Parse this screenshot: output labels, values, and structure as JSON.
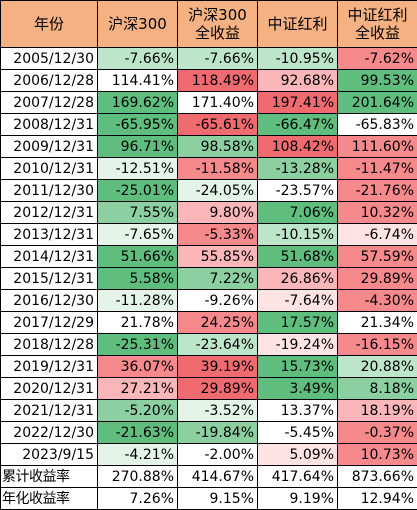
{
  "headers": [
    [
      "年份"
    ],
    [
      "沪深300"
    ],
    [
      "沪深300",
      "全收益"
    ],
    [
      "中证红利"
    ],
    [
      "中证红利",
      "全收益"
    ]
  ],
  "colors": {
    "header": "#f4b183",
    "scale": {
      "g3": "#5fbe7d",
      "g2": "#8cd0a1",
      "g1": "#bde5c9",
      "g0": "#e4f4e9",
      "w": "#ffffff",
      "r0": "#fde3e4",
      "r1": "#fab6b8",
      "r2": "#f5898c",
      "r3": "#f06b6f"
    }
  },
  "rows": [
    {
      "date": "2005/12/30",
      "cells": [
        {
          "v": "-7.66%",
          "c": "g1"
        },
        {
          "v": "-7.66%",
          "c": "g1"
        },
        {
          "v": "-10.95%",
          "c": "g1"
        },
        {
          "v": "-7.62%",
          "c": "r2"
        }
      ]
    },
    {
      "date": "2006/12/28",
      "cells": [
        {
          "v": "114.41%",
          "c": "w"
        },
        {
          "v": "118.49%",
          "c": "r3"
        },
        {
          "v": "92.68%",
          "c": "r1"
        },
        {
          "v": "99.53%",
          "c": "g3"
        }
      ]
    },
    {
      "date": "2007/12/28",
      "cells": [
        {
          "v": "169.62%",
          "c": "g3"
        },
        {
          "v": "171.40%",
          "c": "w"
        },
        {
          "v": "197.41%",
          "c": "r3"
        },
        {
          "v": "201.64%",
          "c": "g3"
        }
      ]
    },
    {
      "date": "2008/12/31",
      "cells": [
        {
          "v": "-65.95%",
          "c": "g3"
        },
        {
          "v": "-65.61%",
          "c": "r3"
        },
        {
          "v": "-66.47%",
          "c": "g3"
        },
        {
          "v": "-65.83%",
          "c": "w"
        }
      ]
    },
    {
      "date": "2009/12/31",
      "cells": [
        {
          "v": "96.71%",
          "c": "g3"
        },
        {
          "v": "98.58%",
          "c": "g2"
        },
        {
          "v": "108.42%",
          "c": "r3"
        },
        {
          "v": "111.60%",
          "c": "r2"
        }
      ]
    },
    {
      "date": "2010/12/31",
      "cells": [
        {
          "v": "-12.51%",
          "c": "g0"
        },
        {
          "v": "-11.58%",
          "c": "r2"
        },
        {
          "v": "-13.28%",
          "c": "g2"
        },
        {
          "v": "-11.47%",
          "c": "r2"
        }
      ]
    },
    {
      "date": "2011/12/30",
      "cells": [
        {
          "v": "-25.01%",
          "c": "g3"
        },
        {
          "v": "-24.05%",
          "c": "g0"
        },
        {
          "v": "-23.57%",
          "c": "w"
        },
        {
          "v": "-21.76%",
          "c": "r2"
        }
      ]
    },
    {
      "date": "2012/12/31",
      "cells": [
        {
          "v": "7.55%",
          "c": "g2"
        },
        {
          "v": "9.80%",
          "c": "r1"
        },
        {
          "v": "7.06%",
          "c": "g3"
        },
        {
          "v": "10.32%",
          "c": "r2"
        }
      ]
    },
    {
      "date": "2013/12/31",
      "cells": [
        {
          "v": "-7.65%",
          "c": "g0"
        },
        {
          "v": "-5.33%",
          "c": "r2"
        },
        {
          "v": "-10.15%",
          "c": "g1"
        },
        {
          "v": "-6.74%",
          "c": "r0"
        }
      ]
    },
    {
      "date": "2014/12/31",
      "cells": [
        {
          "v": "51.66%",
          "c": "g3"
        },
        {
          "v": "55.85%",
          "c": "r1"
        },
        {
          "v": "51.68%",
          "c": "g3"
        },
        {
          "v": "57.59%",
          "c": "r2"
        }
      ]
    },
    {
      "date": "2015/12/31",
      "cells": [
        {
          "v": "5.58%",
          "c": "g3"
        },
        {
          "v": "7.22%",
          "c": "g2"
        },
        {
          "v": "26.86%",
          "c": "r1"
        },
        {
          "v": "29.89%",
          "c": "r2"
        }
      ]
    },
    {
      "date": "2016/12/30",
      "cells": [
        {
          "v": "-11.28%",
          "c": "g0"
        },
        {
          "v": "-9.26%",
          "c": "w"
        },
        {
          "v": "-7.64%",
          "c": "r0"
        },
        {
          "v": "-4.30%",
          "c": "r2"
        }
      ]
    },
    {
      "date": "2017/12/29",
      "cells": [
        {
          "v": "21.78%",
          "c": "w"
        },
        {
          "v": "24.25%",
          "c": "r2"
        },
        {
          "v": "17.57%",
          "c": "g3"
        },
        {
          "v": "21.34%",
          "c": "w"
        }
      ]
    },
    {
      "date": "2018/12/28",
      "cells": [
        {
          "v": "-25.31%",
          "c": "g3"
        },
        {
          "v": "-23.64%",
          "c": "g1"
        },
        {
          "v": "-19.24%",
          "c": "r0"
        },
        {
          "v": "-16.15%",
          "c": "r2"
        }
      ]
    },
    {
      "date": "2019/12/31",
      "cells": [
        {
          "v": "36.07%",
          "c": "r2"
        },
        {
          "v": "39.19%",
          "c": "r3"
        },
        {
          "v": "15.73%",
          "c": "g3"
        },
        {
          "v": "20.88%",
          "c": "g1"
        }
      ]
    },
    {
      "date": "2020/12/31",
      "cells": [
        {
          "v": "27.21%",
          "c": "r1"
        },
        {
          "v": "29.89%",
          "c": "r3"
        },
        {
          "v": "3.49%",
          "c": "g3"
        },
        {
          "v": "8.18%",
          "c": "g2"
        }
      ]
    },
    {
      "date": "2021/12/31",
      "cells": [
        {
          "v": "-5.20%",
          "c": "g2"
        },
        {
          "v": "-3.52%",
          "c": "g0"
        },
        {
          "v": "13.37%",
          "c": "w"
        },
        {
          "v": "18.19%",
          "c": "r1"
        }
      ]
    },
    {
      "date": "2022/12/30",
      "cells": [
        {
          "v": "-21.63%",
          "c": "g3"
        },
        {
          "v": "-19.84%",
          "c": "g2"
        },
        {
          "v": "-5.45%",
          "c": "w"
        },
        {
          "v": "-0.37%",
          "c": "r2"
        }
      ]
    },
    {
      "date": "2023/9/15",
      "cells": [
        {
          "v": "-4.21%",
          "c": "g0"
        },
        {
          "v": "-2.00%",
          "c": "w"
        },
        {
          "v": "5.09%",
          "c": "r0"
        },
        {
          "v": "10.73%",
          "c": "r2"
        }
      ]
    }
  ],
  "summary": [
    {
      "label": "累计收益率",
      "values": [
        "270.88%",
        "414.67%",
        "417.64%",
        "873.66%"
      ]
    },
    {
      "label": "年化收益率",
      "values": [
        "7.26%",
        "9.15%",
        "9.19%",
        "12.94%"
      ]
    }
  ]
}
